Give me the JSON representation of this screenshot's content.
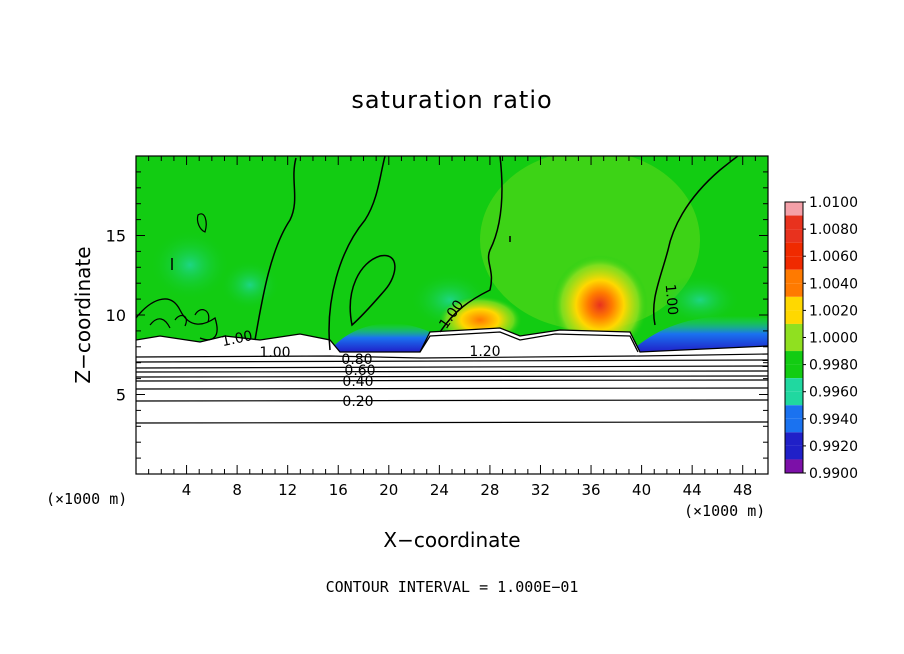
{
  "chart_data": {
    "type": "heatmap",
    "title": "saturation ratio",
    "xlabel": "X−coordinate",
    "ylabel": "Z−coordinate",
    "x_unit_left": "(×1000 m)",
    "x_unit_right": "(×1000 m)",
    "xlim": [
      0,
      50
    ],
    "ylim": [
      0,
      20
    ],
    "x_ticks": [
      4,
      8,
      12,
      16,
      20,
      24,
      28,
      32,
      36,
      40,
      44,
      48
    ],
    "y_ticks": [
      5,
      10,
      15
    ],
    "colorbar": {
      "labels": [
        "1.0100",
        "1.0080",
        "1.0060",
        "1.0040",
        "1.0020",
        "1.0000",
        "0.9980",
        "0.9960",
        "0.9940",
        "0.9920",
        "0.9900"
      ],
      "colors": [
        "#f4a0a8",
        "#e8321e",
        "#f02a00",
        "#ff7a00",
        "#ffd800",
        "#90e020",
        "#12cc12",
        "#20d8a0",
        "#1a72f0",
        "#2020c8",
        "#7c10a8"
      ]
    },
    "contour_labels": [
      "1.00",
      "1.00",
      "1.00",
      "1.00",
      "1.20",
      "0.80",
      "0.60",
      "0.40",
      "0.20"
    ],
    "contour_levels": [
      0.2,
      0.3,
      0.4,
      0.5,
      0.6,
      0.7,
      0.8,
      0.9,
      1.0,
      1.2
    ],
    "contour_interval": "CONTOUR INTERVAL = 1.000E−01"
  }
}
